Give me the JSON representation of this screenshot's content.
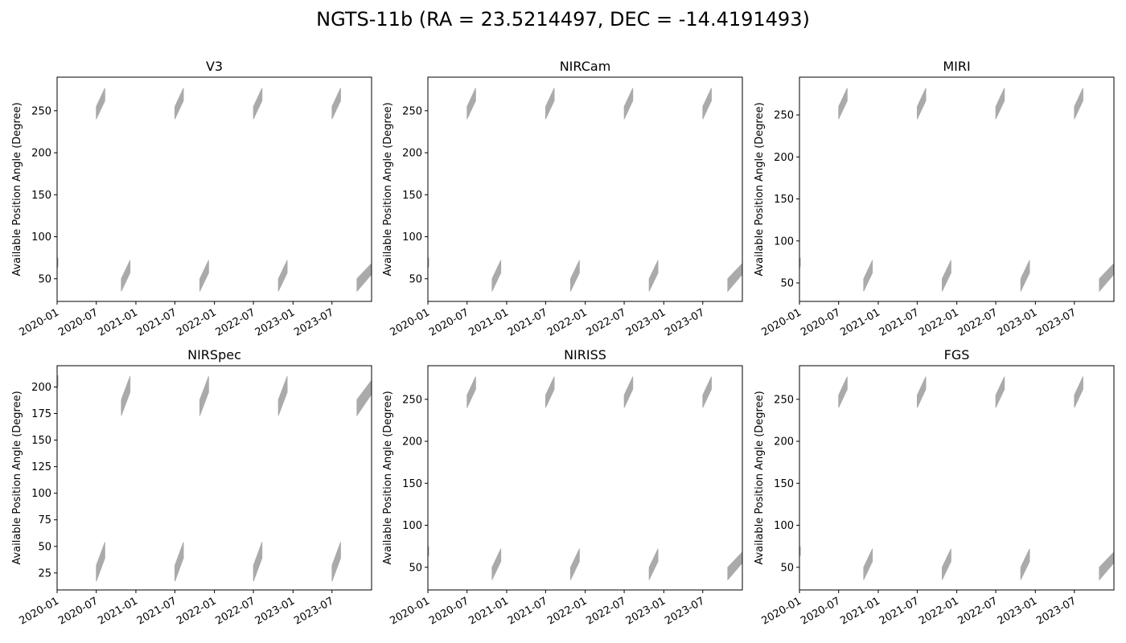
{
  "figure": {
    "suptitle": "NGTS-11b (RA = 23.5214497, DEC = -14.4191493)"
  },
  "chart_data": [
    {
      "type": "area",
      "title": "V3",
      "ylabel": "Available Position Angle (Degree)",
      "xlabel": "",
      "xlim": [
        "2020-01-01",
        "2024-01-01"
      ],
      "ylim": [
        23,
        290
      ],
      "xticks": [
        "2020-01",
        "2020-07",
        "2021-01",
        "2021-07",
        "2022-01",
        "2022-07",
        "2023-01",
        "2023-07"
      ],
      "yticks": [
        50,
        100,
        150,
        200,
        250
      ],
      "fill_color": "#aaaaaa",
      "grid": false,
      "windows": [
        {
          "start": "2020-01-01",
          "end": "2020-01-05",
          "low_start": 62,
          "low_end": 65,
          "high_start": 72,
          "high_end": 75
        },
        {
          "start": "2020-07-01",
          "end": "2020-08-10",
          "low_start": 240,
          "low_end": 262,
          "high_start": 255,
          "high_end": 277
        },
        {
          "start": "2020-10-25",
          "end": "2020-12-05",
          "low_start": 35,
          "low_end": 57,
          "high_start": 50,
          "high_end": 72
        },
        {
          "start": "2021-07-01",
          "end": "2021-08-10",
          "low_start": 240,
          "low_end": 262,
          "high_start": 255,
          "high_end": 277
        },
        {
          "start": "2021-10-25",
          "end": "2021-12-05",
          "low_start": 35,
          "low_end": 57,
          "high_start": 50,
          "high_end": 72
        },
        {
          "start": "2022-07-01",
          "end": "2022-08-10",
          "low_start": 240,
          "low_end": 262,
          "high_start": 255,
          "high_end": 277
        },
        {
          "start": "2022-10-25",
          "end": "2022-12-05",
          "low_start": 35,
          "low_end": 57,
          "high_start": 50,
          "high_end": 72
        },
        {
          "start": "2023-07-01",
          "end": "2023-08-10",
          "low_start": 240,
          "low_end": 262,
          "high_start": 255,
          "high_end": 277
        },
        {
          "start": "2023-10-25",
          "end": "2023-12-31",
          "low_start": 35,
          "low_end": 55,
          "high_start": 50,
          "high_end": 68
        }
      ]
    },
    {
      "type": "area",
      "title": "NIRCam",
      "ylabel": "Available Position Angle (Degree)",
      "xlabel": "",
      "xlim": [
        "2020-01-01",
        "2024-01-01"
      ],
      "ylim": [
        23,
        290
      ],
      "xticks": [
        "2020-01",
        "2020-07",
        "2021-01",
        "2021-07",
        "2022-01",
        "2022-07",
        "2023-01",
        "2023-07"
      ],
      "yticks": [
        50,
        100,
        150,
        200,
        250
      ],
      "fill_color": "#aaaaaa",
      "grid": false,
      "windows": [
        {
          "start": "2020-01-01",
          "end": "2020-01-05",
          "low_start": 62,
          "low_end": 65,
          "high_start": 72,
          "high_end": 75
        },
        {
          "start": "2020-07-01",
          "end": "2020-08-10",
          "low_start": 240,
          "low_end": 262,
          "high_start": 255,
          "high_end": 277
        },
        {
          "start": "2020-10-25",
          "end": "2020-12-05",
          "low_start": 35,
          "low_end": 57,
          "high_start": 50,
          "high_end": 72
        },
        {
          "start": "2021-07-01",
          "end": "2021-08-10",
          "low_start": 240,
          "low_end": 262,
          "high_start": 255,
          "high_end": 277
        },
        {
          "start": "2021-10-25",
          "end": "2021-12-05",
          "low_start": 35,
          "low_end": 57,
          "high_start": 50,
          "high_end": 72
        },
        {
          "start": "2022-07-01",
          "end": "2022-08-10",
          "low_start": 240,
          "low_end": 262,
          "high_start": 255,
          "high_end": 277
        },
        {
          "start": "2022-10-25",
          "end": "2022-12-05",
          "low_start": 35,
          "low_end": 57,
          "high_start": 50,
          "high_end": 72
        },
        {
          "start": "2023-07-01",
          "end": "2023-08-10",
          "low_start": 240,
          "low_end": 262,
          "high_start": 255,
          "high_end": 277
        },
        {
          "start": "2023-10-25",
          "end": "2023-12-31",
          "low_start": 35,
          "low_end": 55,
          "high_start": 50,
          "high_end": 68
        }
      ]
    },
    {
      "type": "area",
      "title": "MIRI",
      "ylabel": "Available Position Angle (Degree)",
      "xlabel": "",
      "xlim": [
        "2020-01-01",
        "2024-01-01"
      ],
      "ylim": [
        28,
        295
      ],
      "xticks": [
        "2020-01",
        "2020-07",
        "2021-01",
        "2021-07",
        "2022-01",
        "2022-07",
        "2023-01",
        "2023-07"
      ],
      "yticks": [
        50,
        100,
        150,
        200,
        250
      ],
      "fill_color": "#aaaaaa",
      "grid": false,
      "windows": [
        {
          "start": "2020-01-01",
          "end": "2020-01-05",
          "low_start": 67,
          "low_end": 70,
          "high_start": 77,
          "high_end": 80
        },
        {
          "start": "2020-07-01",
          "end": "2020-08-10",
          "low_start": 245,
          "low_end": 267,
          "high_start": 260,
          "high_end": 282
        },
        {
          "start": "2020-10-25",
          "end": "2020-12-05",
          "low_start": 40,
          "low_end": 62,
          "high_start": 55,
          "high_end": 77
        },
        {
          "start": "2021-07-01",
          "end": "2021-08-10",
          "low_start": 245,
          "low_end": 267,
          "high_start": 260,
          "high_end": 282
        },
        {
          "start": "2021-10-25",
          "end": "2021-12-05",
          "low_start": 40,
          "low_end": 62,
          "high_start": 55,
          "high_end": 77
        },
        {
          "start": "2022-07-01",
          "end": "2022-08-10",
          "low_start": 245,
          "low_end": 267,
          "high_start": 260,
          "high_end": 282
        },
        {
          "start": "2022-10-25",
          "end": "2022-12-05",
          "low_start": 40,
          "low_end": 62,
          "high_start": 55,
          "high_end": 77
        },
        {
          "start": "2023-07-01",
          "end": "2023-08-10",
          "low_start": 245,
          "low_end": 267,
          "high_start": 260,
          "high_end": 282
        },
        {
          "start": "2023-10-25",
          "end": "2023-12-31",
          "low_start": 40,
          "low_end": 60,
          "high_start": 55,
          "high_end": 73
        }
      ]
    },
    {
      "type": "area",
      "title": "NIRSpec",
      "ylabel": "Available Position Angle (Degree)",
      "xlabel": "",
      "xlim": [
        "2020-01-01",
        "2024-01-01"
      ],
      "ylim": [
        9,
        220
      ],
      "xticks": [
        "2020-01",
        "2020-07",
        "2021-01",
        "2021-07",
        "2022-01",
        "2022-07",
        "2023-01",
        "2023-07"
      ],
      "yticks": [
        25,
        50,
        75,
        100,
        125,
        150,
        175,
        200
      ],
      "fill_color": "#aaaaaa",
      "grid": false,
      "windows": [
        {
          "start": "2020-01-01",
          "end": "2020-01-05",
          "low_start": 198,
          "low_end": 201,
          "high_start": 208,
          "high_end": 211
        },
        {
          "start": "2020-07-01",
          "end": "2020-08-10",
          "low_start": 17,
          "low_end": 39,
          "high_start": 32,
          "high_end": 54
        },
        {
          "start": "2020-10-25",
          "end": "2020-12-05",
          "low_start": 173,
          "low_end": 195,
          "high_start": 188,
          "high_end": 210
        },
        {
          "start": "2021-07-01",
          "end": "2021-08-10",
          "low_start": 17,
          "low_end": 39,
          "high_start": 32,
          "high_end": 54
        },
        {
          "start": "2021-10-25",
          "end": "2021-12-05",
          "low_start": 173,
          "low_end": 195,
          "high_start": 188,
          "high_end": 210
        },
        {
          "start": "2022-07-01",
          "end": "2022-08-10",
          "low_start": 17,
          "low_end": 39,
          "high_start": 32,
          "high_end": 54
        },
        {
          "start": "2022-10-25",
          "end": "2022-12-05",
          "low_start": 173,
          "low_end": 195,
          "high_start": 188,
          "high_end": 210
        },
        {
          "start": "2023-07-01",
          "end": "2023-08-10",
          "low_start": 17,
          "low_end": 39,
          "high_start": 32,
          "high_end": 54
        },
        {
          "start": "2023-10-25",
          "end": "2023-12-31",
          "low_start": 173,
          "low_end": 193,
          "high_start": 188,
          "high_end": 206
        }
      ]
    },
    {
      "type": "area",
      "title": "NIRISS",
      "ylabel": "Available Position Angle (Degree)",
      "xlabel": "",
      "xlim": [
        "2020-01-01",
        "2024-01-01"
      ],
      "ylim": [
        23,
        290
      ],
      "xticks": [
        "2020-01",
        "2020-07",
        "2021-01",
        "2021-07",
        "2022-01",
        "2022-07",
        "2023-01",
        "2023-07"
      ],
      "yticks": [
        50,
        100,
        150,
        200,
        250
      ],
      "fill_color": "#aaaaaa",
      "grid": false,
      "windows": [
        {
          "start": "2020-01-01",
          "end": "2020-01-05",
          "low_start": 62,
          "low_end": 65,
          "high_start": 72,
          "high_end": 75
        },
        {
          "start": "2020-07-01",
          "end": "2020-08-10",
          "low_start": 240,
          "low_end": 262,
          "high_start": 255,
          "high_end": 277
        },
        {
          "start": "2020-10-25",
          "end": "2020-12-05",
          "low_start": 35,
          "low_end": 57,
          "high_start": 50,
          "high_end": 72
        },
        {
          "start": "2021-07-01",
          "end": "2021-08-10",
          "low_start": 240,
          "low_end": 262,
          "high_start": 255,
          "high_end": 277
        },
        {
          "start": "2021-10-25",
          "end": "2021-12-05",
          "low_start": 35,
          "low_end": 57,
          "high_start": 50,
          "high_end": 72
        },
        {
          "start": "2022-07-01",
          "end": "2022-08-10",
          "low_start": 240,
          "low_end": 262,
          "high_start": 255,
          "high_end": 277
        },
        {
          "start": "2022-10-25",
          "end": "2022-12-05",
          "low_start": 35,
          "low_end": 57,
          "high_start": 50,
          "high_end": 72
        },
        {
          "start": "2023-07-01",
          "end": "2023-08-10",
          "low_start": 240,
          "low_end": 262,
          "high_start": 255,
          "high_end": 277
        },
        {
          "start": "2023-10-25",
          "end": "2023-12-31",
          "low_start": 35,
          "low_end": 55,
          "high_start": 50,
          "high_end": 68
        }
      ]
    },
    {
      "type": "area",
      "title": "FGS",
      "ylabel": "Available Position Angle (Degree)",
      "xlabel": "",
      "xlim": [
        "2020-01-01",
        "2024-01-01"
      ],
      "ylim": [
        23,
        290
      ],
      "xticks": [
        "2020-01",
        "2020-07",
        "2021-01",
        "2021-07",
        "2022-01",
        "2022-07",
        "2023-01",
        "2023-07"
      ],
      "yticks": [
        50,
        100,
        150,
        200,
        250
      ],
      "fill_color": "#aaaaaa",
      "grid": false,
      "windows": [
        {
          "start": "2020-01-01",
          "end": "2020-01-05",
          "low_start": 62,
          "low_end": 65,
          "high_start": 72,
          "high_end": 75
        },
        {
          "start": "2020-07-01",
          "end": "2020-08-10",
          "low_start": 240,
          "low_end": 262,
          "high_start": 255,
          "high_end": 277
        },
        {
          "start": "2020-10-25",
          "end": "2020-12-05",
          "low_start": 35,
          "low_end": 57,
          "high_start": 50,
          "high_end": 72
        },
        {
          "start": "2021-07-01",
          "end": "2021-08-10",
          "low_start": 240,
          "low_end": 262,
          "high_start": 255,
          "high_end": 277
        },
        {
          "start": "2021-10-25",
          "end": "2021-12-05",
          "low_start": 35,
          "low_end": 57,
          "high_start": 50,
          "high_end": 72
        },
        {
          "start": "2022-07-01",
          "end": "2022-08-10",
          "low_start": 240,
          "low_end": 262,
          "high_start": 255,
          "high_end": 277
        },
        {
          "start": "2022-10-25",
          "end": "2022-12-05",
          "low_start": 35,
          "low_end": 57,
          "high_start": 50,
          "high_end": 72
        },
        {
          "start": "2023-07-01",
          "end": "2023-08-10",
          "low_start": 240,
          "low_end": 262,
          "high_start": 255,
          "high_end": 277
        },
        {
          "start": "2023-10-25",
          "end": "2023-12-31",
          "low_start": 35,
          "low_end": 55,
          "high_start": 50,
          "high_end": 68
        }
      ]
    }
  ]
}
